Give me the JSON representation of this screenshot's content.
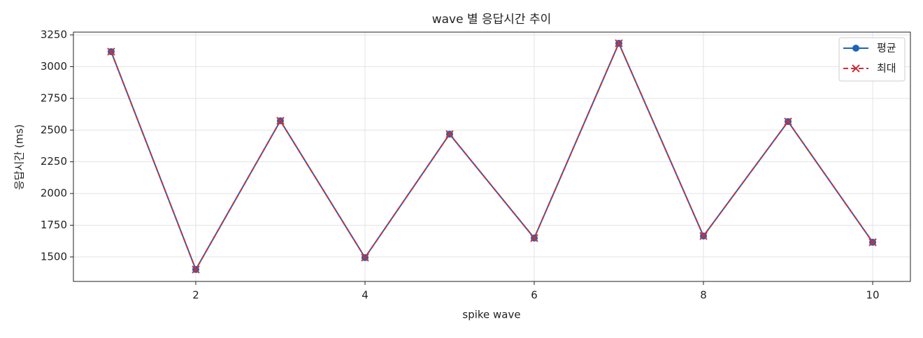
{
  "chart_data": {
    "type": "line",
    "title": "wave 별 응답시간 추이",
    "xlabel": "spike wave",
    "ylabel": "응답시간 (ms)",
    "x": [
      1,
      2,
      3,
      4,
      5,
      6,
      7,
      8,
      9,
      10
    ],
    "series": [
      {
        "name": "평균",
        "color": "#1f64b8",
        "marker": "circle",
        "linestyle": "solid",
        "values": [
          3118,
          1401,
          2573,
          1495,
          2468,
          1649,
          3184,
          1665,
          2567,
          1616
        ]
      },
      {
        "name": "최대",
        "color": "#c8313a",
        "marker": "x",
        "linestyle": "dashed",
        "values": [
          3118,
          1401,
          2573,
          1495,
          2468,
          1649,
          3184,
          1665,
          2567,
          1616
        ]
      }
    ],
    "xlim": [
      0.554,
      10.446
    ],
    "xticks": [
      2,
      4,
      6,
      8,
      10
    ],
    "ylim": [
      1307,
      3272
    ],
    "yticks": [
      1500,
      1750,
      2000,
      2250,
      2500,
      2750,
      3000,
      3250
    ],
    "grid": true,
    "legend": "upper right"
  }
}
